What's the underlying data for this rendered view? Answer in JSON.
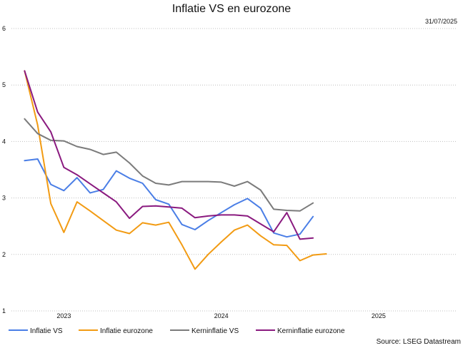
{
  "chart_data": {
    "type": "line",
    "title": "Inflatie VS en eurozone",
    "date": "31/07/2025",
    "source": "Source: LSEG Datastream",
    "xlabel": "",
    "ylabel": "",
    "ylim": [
      1,
      6
    ],
    "yticks": [
      "1",
      "2",
      "3",
      "4",
      "5",
      "6"
    ],
    "xlim": [
      "2022-09",
      "2025-07"
    ],
    "xticks": [
      {
        "label": "2023",
        "date": "2023-01"
      },
      {
        "label": "2024",
        "date": "2024-01"
      },
      {
        "label": "2025",
        "date": "2025-01"
      }
    ],
    "grid": true,
    "legend_position": "bottom-left",
    "series": [
      {
        "name": "Inflatie VS",
        "color": "#4a7ee6",
        "points": [
          [
            "2022-10",
            3.66
          ],
          [
            "2022-11",
            3.69
          ],
          [
            "2022-12",
            3.24
          ],
          [
            "2023-01",
            3.13
          ],
          [
            "2023-02",
            3.36
          ],
          [
            "2023-03",
            3.09
          ],
          [
            "2023-04",
            3.15
          ],
          [
            "2023-05",
            3.48
          ],
          [
            "2023-06",
            3.35
          ],
          [
            "2023-07",
            3.26
          ],
          [
            "2023-08",
            2.97
          ],
          [
            "2023-09",
            2.89
          ],
          [
            "2023-10",
            2.53
          ],
          [
            "2023-11",
            2.44
          ],
          [
            "2023-12",
            2.6
          ],
          [
            "2024-01",
            2.74
          ],
          [
            "2024-02",
            2.88
          ],
          [
            "2024-03",
            2.99
          ],
          [
            "2024-04",
            2.82
          ],
          [
            "2024-05",
            2.38
          ],
          [
            "2024-06",
            2.31
          ],
          [
            "2024-07",
            2.36
          ],
          [
            "2024-08",
            2.67
          ]
        ]
      },
      {
        "name": "Inflatie eurozone",
        "color": "#f29b13",
        "points": [
          [
            "2022-10",
            5.25
          ],
          [
            "2022-11",
            4.29
          ],
          [
            "2022-12",
            2.9
          ],
          [
            "2023-01",
            2.39
          ],
          [
            "2023-02",
            2.93
          ],
          [
            "2023-03",
            2.77
          ],
          [
            "2023-04",
            2.6
          ],
          [
            "2023-05",
            2.43
          ],
          [
            "2023-06",
            2.37
          ],
          [
            "2023-07",
            2.56
          ],
          [
            "2023-08",
            2.52
          ],
          [
            "2023-09",
            2.57
          ],
          [
            "2023-10",
            2.17
          ],
          [
            "2023-11",
            1.74
          ],
          [
            "2023-12",
            2.0
          ],
          [
            "2024-01",
            2.22
          ],
          [
            "2024-02",
            2.43
          ],
          [
            "2024-03",
            2.52
          ],
          [
            "2024-04",
            2.33
          ],
          [
            "2024-05",
            2.17
          ],
          [
            "2024-06",
            2.16
          ],
          [
            "2024-07",
            1.89
          ],
          [
            "2024-08",
            1.99
          ],
          [
            "2024-09",
            2.01
          ]
        ]
      },
      {
        "name": "Kerninflatie VS",
        "color": "#7b7b7b",
        "points": [
          [
            "2022-10",
            4.4
          ],
          [
            "2022-11",
            4.14
          ],
          [
            "2022-12",
            4.02
          ],
          [
            "2023-01",
            4.01
          ],
          [
            "2023-02",
            3.91
          ],
          [
            "2023-03",
            3.86
          ],
          [
            "2023-04",
            3.77
          ],
          [
            "2023-05",
            3.81
          ],
          [
            "2023-06",
            3.62
          ],
          [
            "2023-07",
            3.39
          ],
          [
            "2023-08",
            3.26
          ],
          [
            "2023-09",
            3.23
          ],
          [
            "2023-10",
            3.29
          ],
          [
            "2023-11",
            3.29
          ],
          [
            "2023-12",
            3.29
          ],
          [
            "2024-01",
            3.28
          ],
          [
            "2024-02",
            3.21
          ],
          [
            "2024-03",
            3.29
          ],
          [
            "2024-04",
            3.14
          ],
          [
            "2024-05",
            2.8
          ],
          [
            "2024-06",
            2.78
          ],
          [
            "2024-07",
            2.77
          ],
          [
            "2024-08",
            2.91
          ]
        ]
      },
      {
        "name": "Kerninflatie eurozone",
        "color": "#8a1a7f",
        "points": [
          [
            "2022-10",
            5.25
          ],
          [
            "2022-11",
            4.52
          ],
          [
            "2022-12",
            4.17
          ],
          [
            "2023-01",
            3.54
          ],
          [
            "2023-02",
            3.41
          ],
          [
            "2023-03",
            3.25
          ],
          [
            "2023-04",
            3.09
          ],
          [
            "2023-05",
            2.93
          ],
          [
            "2023-06",
            2.64
          ],
          [
            "2023-07",
            2.85
          ],
          [
            "2023-08",
            2.86
          ],
          [
            "2023-09",
            2.84
          ],
          [
            "2023-10",
            2.82
          ],
          [
            "2023-11",
            2.65
          ],
          [
            "2023-12",
            2.68
          ],
          [
            "2024-01",
            2.7
          ],
          [
            "2024-02",
            2.7
          ],
          [
            "2024-03",
            2.68
          ],
          [
            "2024-04",
            2.54
          ],
          [
            "2024-05",
            2.4
          ],
          [
            "2024-06",
            2.74
          ],
          [
            "2024-07",
            2.27
          ],
          [
            "2024-08",
            2.29
          ]
        ]
      }
    ]
  }
}
